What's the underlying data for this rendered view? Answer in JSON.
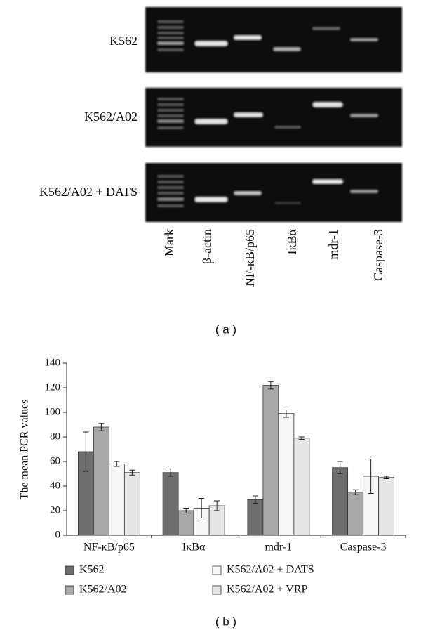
{
  "panel_labels": [
    "( a )",
    "( b )"
  ],
  "gel": {
    "row_labels": [
      "K562",
      "K562/A02",
      "K562/A02 + DATS"
    ],
    "lane_labels": [
      "Mark",
      "β-actin",
      "NF-κB/p65",
      "IκBα",
      "mdr-1",
      "Caspase-3"
    ]
  },
  "chart_data": {
    "type": "bar",
    "y_label": "The mean PCR values",
    "categories": [
      "NF-κB/p65",
      "IκBα",
      "mdr-1",
      "Caspase-3"
    ],
    "series": [
      {
        "name": "K562",
        "color": "#6e6e6e",
        "values": [
          68,
          51,
          29,
          55
        ],
        "errors": [
          16,
          3,
          3,
          5
        ]
      },
      {
        "name": "K562/A02",
        "color": "#a8a8a8",
        "values": [
          88,
          20,
          122,
          35
        ],
        "errors": [
          3,
          2,
          3,
          2
        ]
      },
      {
        "name": "K562/A02 + DATS",
        "color": "#f7f7f7",
        "values": [
          58,
          22,
          99,
          48
        ],
        "errors": [
          2,
          8,
          3,
          14
        ]
      },
      {
        "name": "K562/A02 + VRP",
        "color": "#e6e6e6",
        "values": [
          51,
          24,
          79,
          47
        ],
        "errors": [
          2,
          4,
          1,
          1
        ]
      }
    ],
    "ylim": [
      0,
      140
    ],
    "yticks": [
      0,
      20,
      40,
      60,
      80,
      100,
      120,
      140
    ]
  }
}
